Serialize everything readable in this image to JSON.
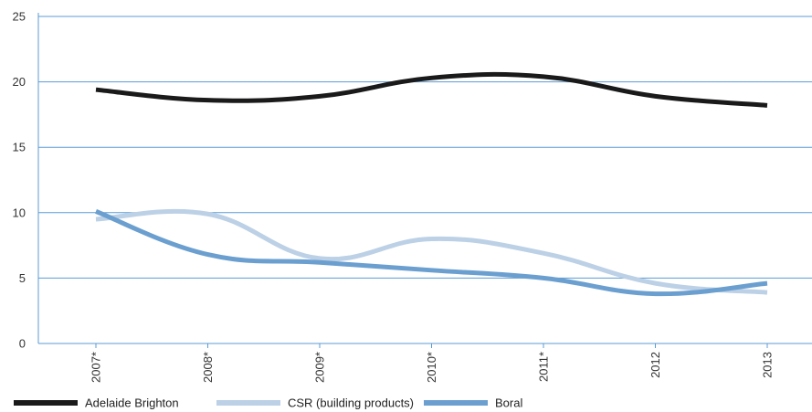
{
  "chart_data": {
    "type": "line",
    "categories": [
      "2007*",
      "2008*",
      "2009*",
      "2010*",
      "2011*",
      "2012",
      "2013"
    ],
    "ylim": [
      0,
      25
    ],
    "yticks": [
      0,
      5,
      10,
      15,
      20,
      25
    ],
    "grid": true,
    "legend_position": "bottom",
    "series": [
      {
        "name": "Adelaide Brighton",
        "color": "#1a1a1a",
        "values": [
          19.4,
          18.6,
          18.9,
          20.3,
          20.4,
          18.9,
          18.2
        ]
      },
      {
        "name": "CSR (building products)",
        "color": "#bcd0e6",
        "values": [
          9.5,
          9.9,
          6.5,
          8.0,
          6.9,
          4.6,
          3.9
        ]
      },
      {
        "name": "Boral",
        "color": "#6b9fcf",
        "values": [
          10.1,
          6.8,
          6.2,
          5.6,
          5.0,
          3.8,
          4.6
        ]
      }
    ]
  }
}
